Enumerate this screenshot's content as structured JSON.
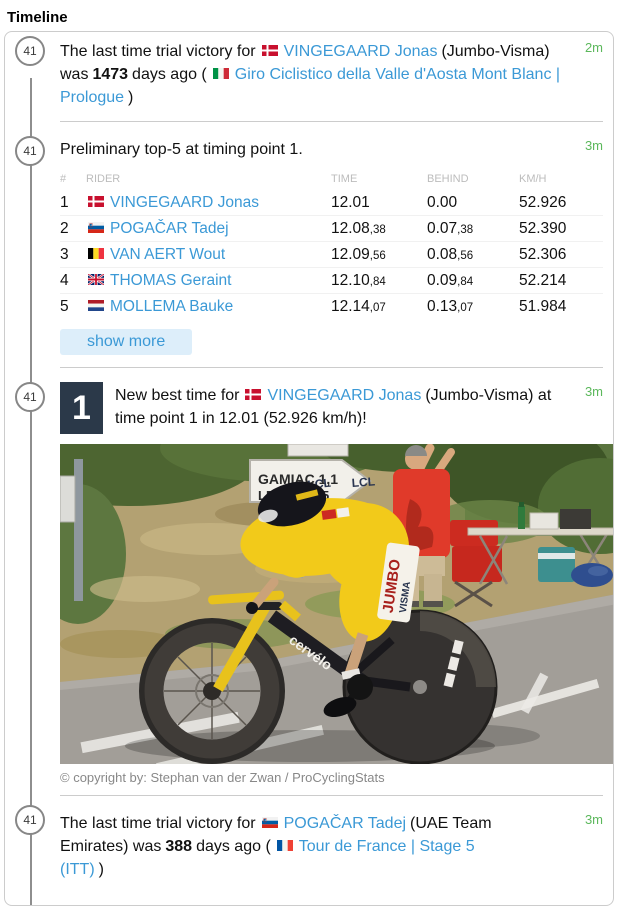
{
  "page": {
    "title": "Timeline"
  },
  "colors": {
    "accent_blue": "#3b99d6",
    "time_green": "#5cb85c",
    "rank_box_bg": "#2b3949",
    "show_more_bg": "#ddeefa",
    "badge_border": "#878787"
  },
  "entries": {
    "e1": {
      "badge": "41",
      "timestamp": "2m",
      "text_before_rider": "The last time trial victory for",
      "rider_flag": "dk",
      "rider_link": "VINGEGAARD Jonas",
      "text_after_rider": "(Jumbo-Visma) was",
      "days_bold": "1473",
      "text_after_days": "days ago (",
      "race_flag": "it",
      "race_link": "Giro Ciclistico della Valle d'Aosta Mont Blanc | Prologue",
      "text_close": ")"
    },
    "e2": {
      "badge": "41",
      "timestamp": "3m",
      "title": "Preliminary top-5 at timing point 1.",
      "table": {
        "headers": [
          "#",
          "RIDER",
          "TIME",
          "BEHIND",
          "KM/H"
        ],
        "rows": [
          {
            "pos": "1",
            "flag": "dk",
            "rider": "VINGEGAARD Jonas",
            "time": "12.01",
            "time_sub": "",
            "behind": "0.00",
            "behind_sub": "",
            "kmh": "52.926"
          },
          {
            "pos": "2",
            "flag": "si",
            "rider": "POGAČAR Tadej",
            "time": "12.08",
            "time_sub": ",38",
            "behind": "0.07",
            "behind_sub": ",38",
            "kmh": "52.390"
          },
          {
            "pos": "3",
            "flag": "be",
            "rider": "VAN AERT Wout",
            "time": "12.09",
            "time_sub": ",56",
            "behind": "0.08",
            "behind_sub": ",56",
            "kmh": "52.306"
          },
          {
            "pos": "4",
            "flag": "gb",
            "rider": "THOMAS Geraint",
            "time": "12.10",
            "time_sub": ",84",
            "behind": "0.09",
            "behind_sub": ",84",
            "kmh": "52.214"
          },
          {
            "pos": "5",
            "flag": "nl",
            "rider": "MOLLEMA Bauke",
            "time": "12.14",
            "time_sub": ",07",
            "behind": "0.13",
            "behind_sub": ",07",
            "kmh": "51.984"
          }
        ]
      },
      "show_more_label": "show more"
    },
    "e3": {
      "badge": "41",
      "timestamp": "3m",
      "rank": "1",
      "text_before_rider": "New best time for",
      "rider_flag": "dk",
      "rider_link": "VINGEGAARD Jonas",
      "text_after_rider": "(Jumbo-Visma) at time point 1 in 12.01 (52.926 km/h)!",
      "photo": {
        "sign_line1": "GAMIAC 1,1",
        "sign_line2": "LEYN",
        "sign_dist2": "5",
        "bike_brand": "cervélo",
        "jersey_sponsor_1": "LCL",
        "jersey_sponsor_2": "LCL",
        "panel_text_1": "JUMBO",
        "panel_text_2": "VISMA",
        "copyright": "© copyright by: Stephan van der Zwan / ProCyclingStats"
      }
    },
    "e4": {
      "badge": "41",
      "timestamp": "3m",
      "text_before_rider": "The last time trial victory for",
      "rider_flag": "si",
      "rider_link": "POGAČAR Tadej",
      "text_after_rider": "(UAE Team Emirates) was",
      "days_bold": "388",
      "text_after_days": "days ago (",
      "race_flag": "fr",
      "race_link": "Tour de France | Stage 5 (ITT)",
      "text_close": ")"
    }
  }
}
